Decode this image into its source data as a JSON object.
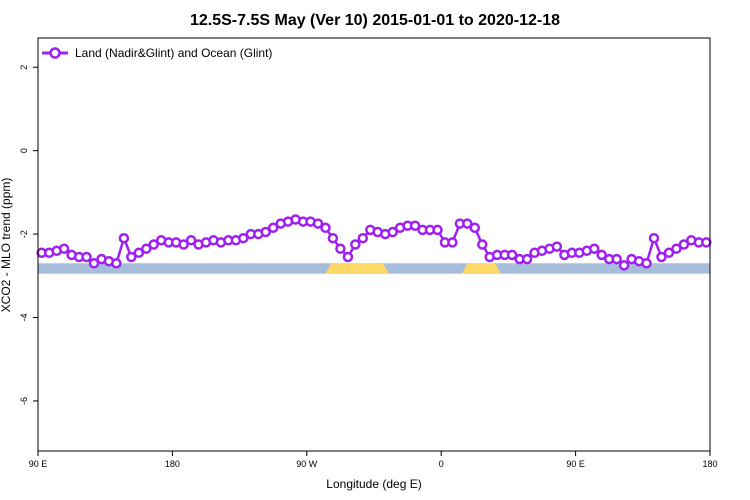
{
  "chart_data": {
    "type": "line",
    "title": "12.5S-7.5S May (Ver 10)   2015-01-01 to 2020-12-18",
    "xlabel": "Longitude (deg E)",
    "ylabel": "XCO2 - MLO trend (ppm)",
    "xlim": [
      0,
      360
    ],
    "ylim": [
      -7.2,
      2.7
    ],
    "x_ticks": [
      0,
      72,
      144,
      216,
      288,
      360
    ],
    "x_tick_labels": [
      "90 E",
      "180",
      "90 W",
      "0",
      "90 E",
      "180"
    ],
    "y_ticks": [
      2,
      0,
      -2,
      -4,
      -6
    ],
    "y_tick_labels": [
      "2",
      "0",
      "-2",
      "-4",
      "-6"
    ],
    "legend": {
      "position": "top-left",
      "entries": [
        "Land (Nadir&Glint) and Ocean (Glint)"
      ]
    },
    "colors": {
      "series": "#a020f0",
      "ocean": "#a6bddb",
      "land": "#ffd966"
    },
    "land_band_y": [
      -2.7,
      -2.95
    ],
    "land_segments": [
      [
        154,
        188
      ],
      [
        227,
        248
      ]
    ],
    "series": [
      {
        "name": "Land (Nadir&Glint) and Ocean (Glint)",
        "x": [
          2,
          6,
          10,
          14,
          18,
          22,
          26,
          30,
          34,
          38,
          42,
          46,
          50,
          54,
          58,
          62,
          66,
          70,
          74,
          78,
          82,
          86,
          90,
          94,
          98,
          102,
          106,
          110,
          114,
          118,
          122,
          126,
          130,
          134,
          138,
          142,
          146,
          150,
          154,
          158,
          162,
          166,
          170,
          174,
          178,
          182,
          186,
          190,
          194,
          198,
          202,
          206,
          210,
          214,
          218,
          222,
          226,
          230,
          234,
          238,
          242,
          246,
          250,
          254,
          258,
          262,
          266,
          270,
          274,
          278,
          282,
          286,
          290,
          294,
          298,
          302,
          306,
          310,
          314,
          318,
          322,
          326,
          330,
          334,
          338,
          342,
          346,
          350,
          354,
          358
        ],
        "values": [
          -2.45,
          -2.45,
          -2.4,
          -2.35,
          -2.5,
          -2.55,
          -2.55,
          -2.7,
          -2.6,
          -2.65,
          -2.7,
          -2.1,
          -2.55,
          -2.45,
          -2.35,
          -2.25,
          -2.15,
          -2.2,
          -2.2,
          -2.25,
          -2.15,
          -2.25,
          -2.2,
          -2.15,
          -2.2,
          -2.15,
          -2.15,
          -2.1,
          -2.0,
          -2.0,
          -1.95,
          -1.85,
          -1.75,
          -1.7,
          -1.65,
          -1.7,
          -1.7,
          -1.75,
          -1.85,
          -2.1,
          -2.35,
          -2.55,
          -2.25,
          -2.1,
          -1.9,
          -1.95,
          -2.0,
          -1.95,
          -1.85,
          -1.8,
          -1.8,
          -1.9,
          -1.9,
          -1.9,
          -2.2,
          -2.2,
          -1.75,
          -1.75,
          -1.85,
          -2.25,
          -2.55,
          -2.5,
          -2.5,
          -2.5,
          -2.6,
          -2.6,
          -2.45,
          -2.4,
          -2.35,
          -2.3,
          -2.5,
          -2.45,
          -2.45,
          -2.4,
          -2.35,
          -2.5,
          -2.6,
          -2.6,
          -2.75,
          -2.6,
          -2.65,
          -2.7,
          -2.1,
          -2.55,
          -2.45,
          -2.35,
          -2.25,
          -2.15,
          -2.2,
          -2.2
        ]
      }
    ]
  }
}
